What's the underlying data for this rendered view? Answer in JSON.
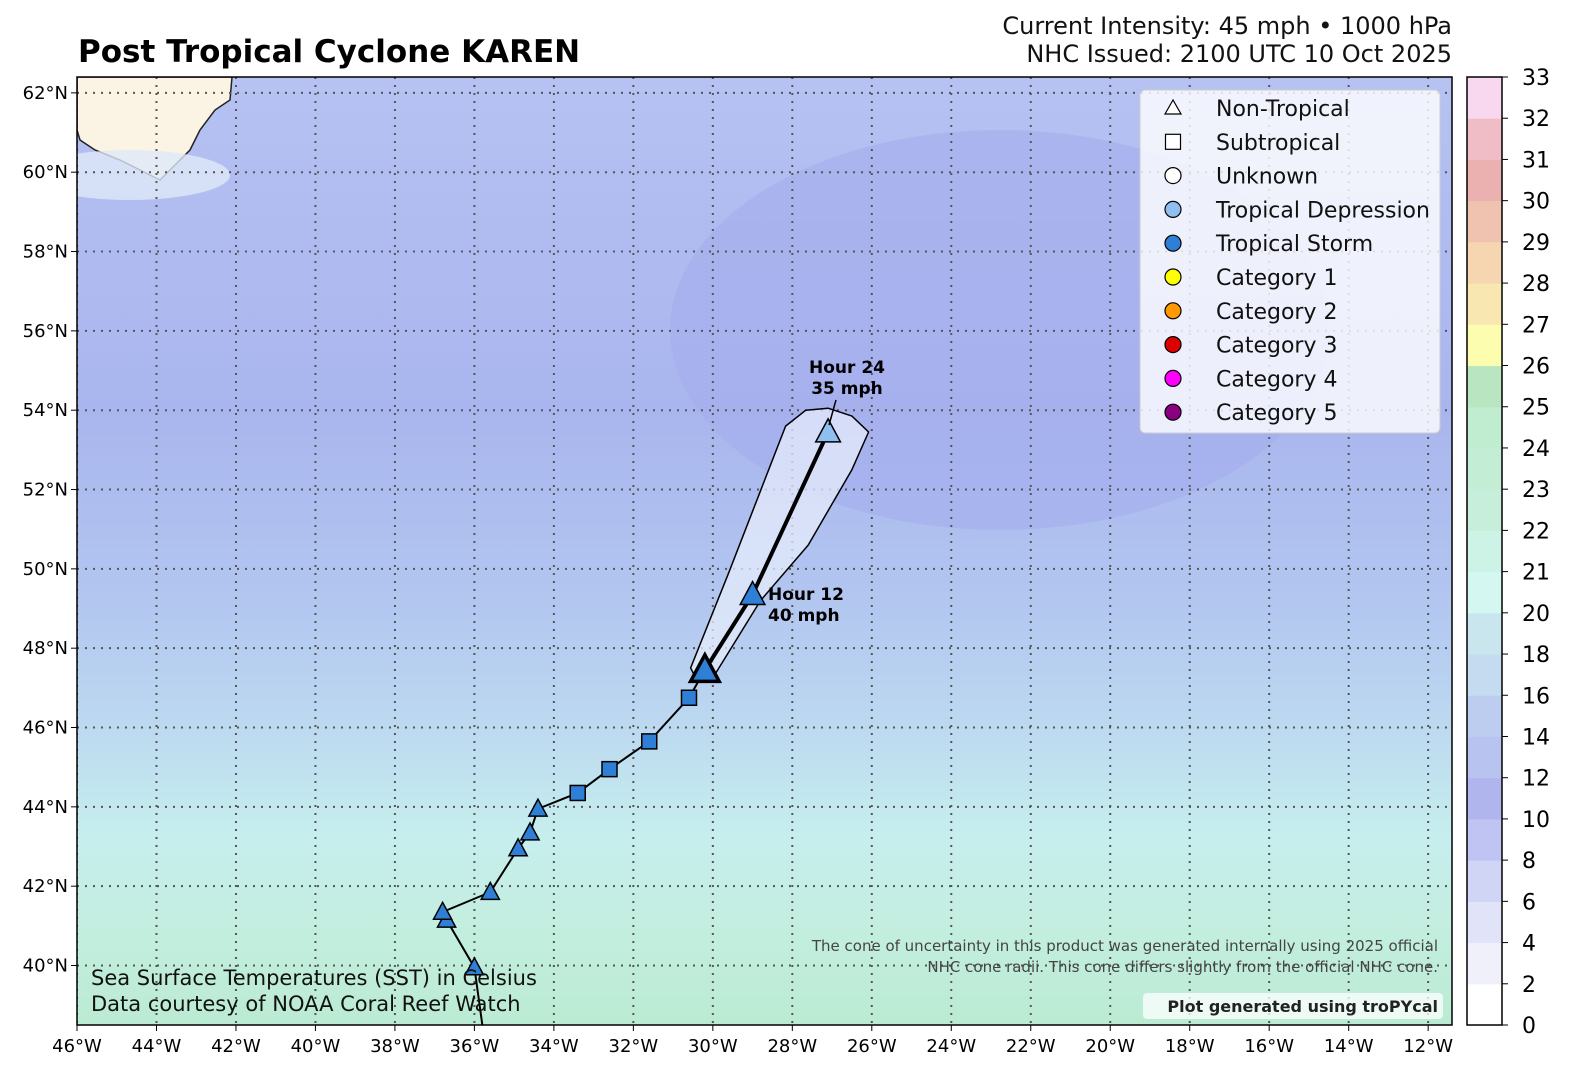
{
  "header": {
    "title": "Post Tropical Cyclone KAREN",
    "intensity": "Current Intensity: 45 mph • 1000 hPa",
    "issued": "NHC Issued: 2100 UTC 10 Oct 2025"
  },
  "legend": [
    {
      "label": "Non-Tropical",
      "shape": "triangle",
      "fill": "#ffffff"
    },
    {
      "label": "Subtropical",
      "shape": "square",
      "fill": "#ffffff"
    },
    {
      "label": "Unknown",
      "shape": "circle",
      "fill": "#ffffff"
    },
    {
      "label": "Tropical Depression",
      "shape": "circle",
      "fill": "#8fbfef"
    },
    {
      "label": "Tropical Storm",
      "shape": "circle",
      "fill": "#2f7fd6"
    },
    {
      "label": "Category 1",
      "shape": "circle",
      "fill": "#ffff00"
    },
    {
      "label": "Category 2",
      "shape": "circle",
      "fill": "#ff9900"
    },
    {
      "label": "Category 3",
      "shape": "circle",
      "fill": "#dd0000"
    },
    {
      "label": "Category 4",
      "shape": "circle",
      "fill": "#ff00ff"
    },
    {
      "label": "Category 5",
      "shape": "circle",
      "fill": "#8b0080"
    }
  ],
  "notes": {
    "sst_line1": "Sea Surface Temperatures (SST) in Celsius",
    "sst_line2": "Data courtesy of NOAA Coral Reef Watch",
    "cone_line1": "The cone of uncertainty in this product was generated internally using 2025 official",
    "cone_line2": "NHC cone radii. This cone differs slightly from the official NHC cone.",
    "credit": "Plot generated using troPYcal"
  },
  "chart_data": {
    "type": "map",
    "title": "Post Tropical Cyclone KAREN",
    "lon_range": [
      -46,
      -11.4
    ],
    "lat_range": [
      38.5,
      62.4
    ],
    "lon_ticks": [
      -46,
      -44,
      -42,
      -40,
      -38,
      -36,
      -34,
      -32,
      -30,
      -28,
      -26,
      -24,
      -22,
      -20,
      -18,
      -16,
      -14,
      -12
    ],
    "lat_ticks": [
      40,
      42,
      44,
      46,
      48,
      50,
      52,
      54,
      56,
      58,
      60,
      62
    ],
    "track": [
      {
        "lon": -35.8,
        "lat": 38.5,
        "shape": "none"
      },
      {
        "lon": -36.0,
        "lat": 39.95,
        "shape": "triangle"
      },
      {
        "lon": -36.7,
        "lat": 41.15,
        "shape": "triangle"
      },
      {
        "lon": -36.8,
        "lat": 41.35,
        "shape": "triangle"
      },
      {
        "lon": -35.6,
        "lat": 41.85,
        "shape": "triangle"
      },
      {
        "lon": -34.9,
        "lat": 42.95,
        "shape": "triangle"
      },
      {
        "lon": -34.6,
        "lat": 43.35,
        "shape": "triangle"
      },
      {
        "lon": -34.4,
        "lat": 43.95,
        "shape": "triangle"
      },
      {
        "lon": -33.4,
        "lat": 44.35,
        "shape": "square"
      },
      {
        "lon": -32.6,
        "lat": 44.95,
        "shape": "square"
      },
      {
        "lon": -31.6,
        "lat": 45.65,
        "shape": "square"
      },
      {
        "lon": -30.6,
        "lat": 46.75,
        "shape": "square"
      },
      {
        "lon": -30.2,
        "lat": 47.45,
        "shape": "triangle",
        "current": true
      }
    ],
    "forecast": [
      {
        "lon": -30.2,
        "lat": 47.45
      },
      {
        "lon": -29.0,
        "lat": 49.35,
        "label1": "Hour 12",
        "label2": "40 mph",
        "fill": "#2f7fd6"
      },
      {
        "lon": -27.1,
        "lat": 53.45,
        "label1": "Hour 24",
        "label2": "35 mph",
        "fill": "#8fbfef"
      }
    ],
    "cone": [
      [
        -30.56,
        47.5
      ],
      [
        -29.6,
        49.9
      ],
      [
        -28.17,
        53.6
      ],
      [
        -27.66,
        54.0
      ],
      [
        -27.1,
        54.05
      ],
      [
        -26.5,
        53.85
      ],
      [
        -26.08,
        53.45
      ],
      [
        -26.5,
        52.5
      ],
      [
        -27.6,
        50.6
      ],
      [
        -28.8,
        49.2
      ],
      [
        -30.0,
        47.25
      ],
      [
        -30.4,
        47.2
      ]
    ],
    "colorbar": {
      "ticks": [
        "0",
        "2",
        "4",
        "6",
        "8",
        "10",
        "12",
        "14",
        "16",
        "18",
        "20",
        "21",
        "22",
        "23",
        "24",
        "25",
        "26",
        "27",
        "28",
        "29",
        "30",
        "31",
        "32",
        "33"
      ],
      "colors": [
        "#ffffff",
        "#f0f0fb",
        "#e1e3f8",
        "#d0d4f5",
        "#bfc4f2",
        "#b0b5ee",
        "#b8c3f0",
        "#bccdf0",
        "#c4dbf0",
        "#c9e6ee",
        "#d5f7f2",
        "#cdf2e6",
        "#c6eedb",
        "#c3eed5",
        "#c0ecd0",
        "#b9e6c1",
        "#fdfdb0",
        "#f8e7b0",
        "#f5d6b0",
        "#f0c3b0",
        "#ebb0b0",
        "#f0bcc5",
        "#f8d8ef"
      ]
    }
  }
}
